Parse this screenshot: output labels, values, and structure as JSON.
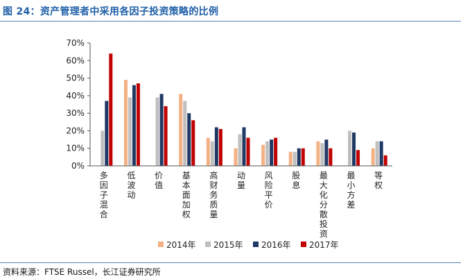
{
  "figure_title": "图 24：资产管理者中采用各因子投资策略的比例",
  "source": "资料来源：FTSE Russel，长江证券研究所",
  "chart_data": {
    "type": "bar",
    "categories": [
      "多因子混合",
      "低波动",
      "价值",
      "基本面加权",
      "高财务质量",
      "动量",
      "风险平价",
      "股息",
      "最大化分散投资",
      "最小方差",
      "等权"
    ],
    "series": [
      {
        "name": "2014年",
        "color": "#f4b183",
        "values": [
          0,
          49,
          0,
          41,
          16,
          10,
          12,
          8,
          14,
          0,
          10
        ]
      },
      {
        "name": "2015年",
        "color": "#bfbfbf",
        "values": [
          20,
          39,
          39,
          37,
          14,
          18,
          14,
          8,
          13,
          20,
          14
        ]
      },
      {
        "name": "2016年",
        "color": "#203864",
        "values": [
          37,
          46,
          41,
          30,
          22,
          22,
          15,
          10,
          15,
          19,
          14
        ]
      },
      {
        "name": "2017年",
        "color": "#c00000",
        "values": [
          64,
          47,
          34,
          26,
          21,
          16,
          16,
          10,
          10,
          9,
          6
        ]
      }
    ],
    "ylim": [
      0,
      70
    ],
    "yticks": [
      "0%",
      "10%",
      "20%",
      "30%",
      "40%",
      "50%",
      "60%",
      "70%"
    ],
    "legend_position": "bottom",
    "grid": false
  }
}
